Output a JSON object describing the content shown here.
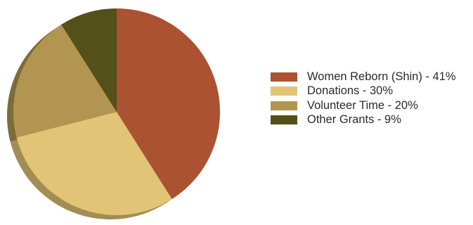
{
  "chart_data": {
    "type": "pie",
    "slices": [
      {
        "label": "Women Reborn (Shin) - 41%",
        "value": 41,
        "color": "#aa5232"
      },
      {
        "label": "Donations - 30%",
        "value": 30,
        "color": "#e1c475"
      },
      {
        "label": "Volunteer Time - 20%",
        "value": 20,
        "color": "#b19550"
      },
      {
        "label": "Other Grants - 9%",
        "value": 9,
        "color": "#545019"
      }
    ],
    "start": "12 o'clock",
    "direction": "clockwise",
    "style": "3d",
    "legend_position": "right"
  }
}
